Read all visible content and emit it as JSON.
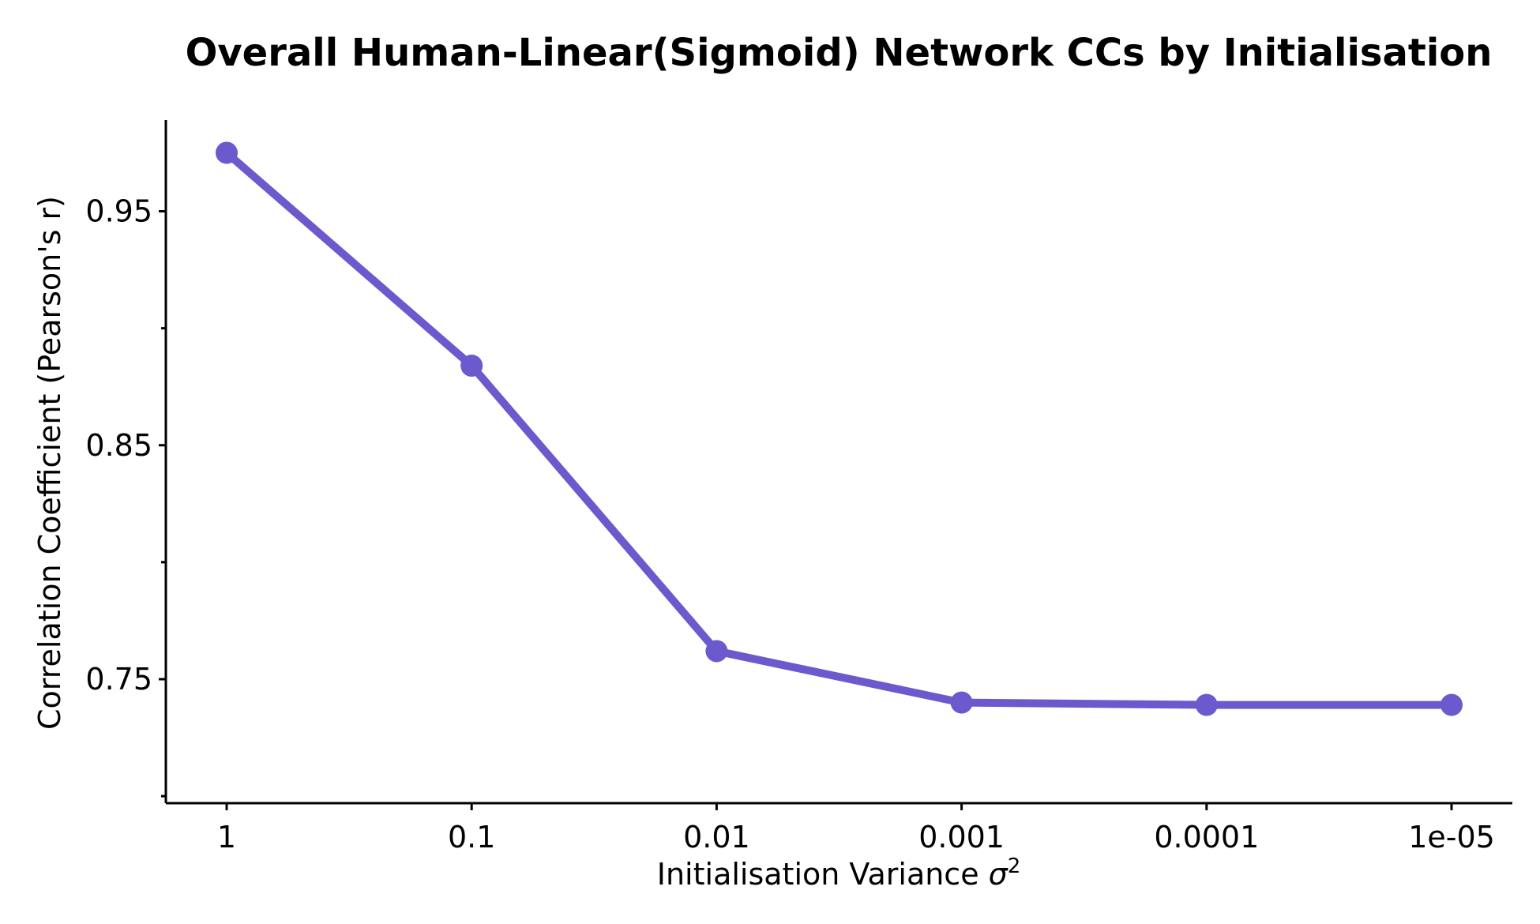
{
  "chart_data": {
    "type": "line",
    "title": "Overall Human-Linear(Sigmoid) Network CCs by Initialisation",
    "xlabel": "Initialisation Variance",
    "xlabel_symbol": "σ",
    "xlabel_superscript": "2",
    "ylabel": "Correlation Coefficient (Pearson's r)",
    "categories": [
      "1",
      "0.1",
      "0.01",
      "0.001",
      "0.0001",
      "1e-05"
    ],
    "series": [
      {
        "values": [
          0.975,
          0.884,
          0.762,
          0.74,
          0.739,
          0.739
        ],
        "color": "#6a5acd"
      }
    ],
    "ylim": [
      0.697,
      0.989
    ],
    "yticks_major": [
      0.75,
      0.85,
      0.95
    ],
    "ytick_labels": [
      "0.75",
      "0.85",
      "0.95"
    ],
    "yticks_minor": [
      0.7,
      0.8,
      0.9
    ],
    "grid": false,
    "legend": "none"
  }
}
